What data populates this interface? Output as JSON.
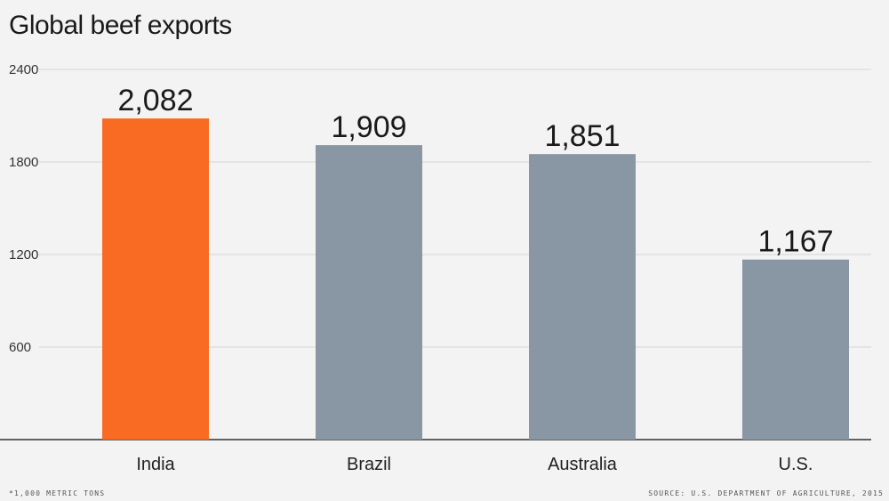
{
  "title": "Global beef exports",
  "footnote": "*1,000 metric tons",
  "source": "Source: U.S. Department of Agriculture, 2015",
  "colors": {
    "highlight": "#f96b22",
    "bar": "#8996a4",
    "grid": "#d6d6d6",
    "axis": "#333333"
  },
  "chart_data": {
    "type": "bar",
    "title": "Global beef exports",
    "categories": [
      "India",
      "Brazil",
      "Australia",
      "U.S."
    ],
    "values": [
      2082,
      1909,
      1851,
      1167
    ],
    "value_labels": [
      "2,082",
      "1,909",
      "1,851",
      "1,167"
    ],
    "yticks": [
      600,
      1200,
      1800,
      2400
    ],
    "ylim": [
      0,
      2400
    ],
    "highlight_index": 0,
    "grid": true
  }
}
